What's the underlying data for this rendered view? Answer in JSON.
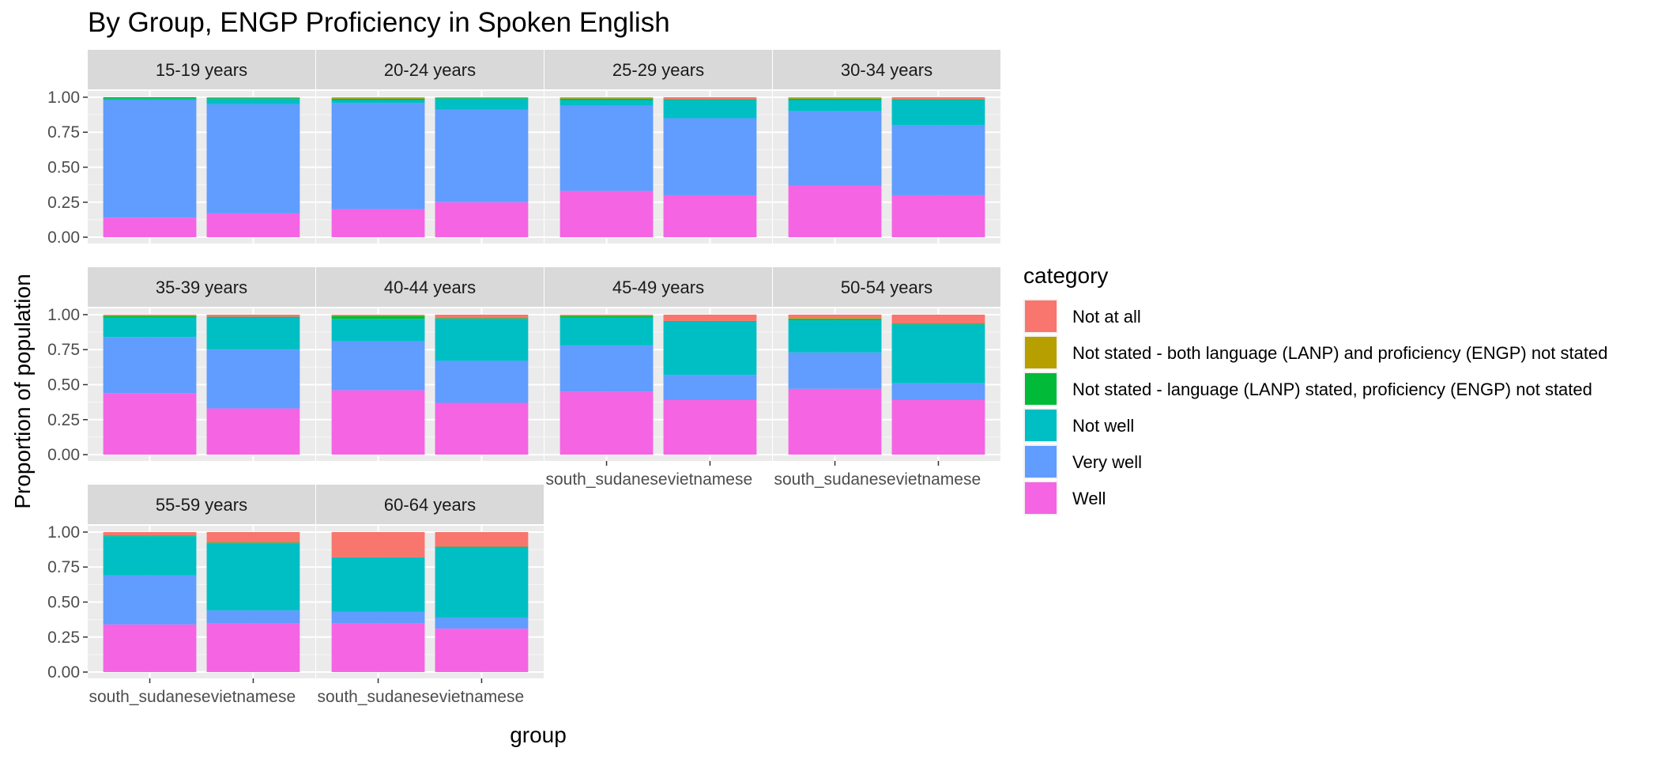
{
  "chart_data": {
    "type": "bar",
    "stacked": true,
    "faceted": true,
    "title": "By Group,  ENGP Proficiency in Spoken English",
    "xlabel": "group",
    "ylabel": "Proportion of population",
    "ylim": [
      0,
      1
    ],
    "y_ticks": [
      "0.00",
      "0.25",
      "0.50",
      "0.75",
      "1.00"
    ],
    "groups": [
      "south_sudanese",
      "vietnamese"
    ],
    "legend": {
      "title": "category",
      "position": "right",
      "entries": [
        {
          "name": "Not at all",
          "color": "#F8766D"
        },
        {
          "name": "Not stated - both language (LANP) and proficiency (ENGP) not stated",
          "color": "#B79F00"
        },
        {
          "name": "Not stated - language (LANP) stated, proficiency (ENGP) not stated",
          "color": "#00BA38"
        },
        {
          "name": "Not well",
          "color": "#00BFC4"
        },
        {
          "name": "Very well",
          "color": "#619CFF"
        },
        {
          "name": "Well",
          "color": "#F564E3"
        }
      ]
    },
    "stack_order_bottom_to_top": [
      "Well",
      "Very well",
      "Not well",
      "Not stated - language (LANP) stated, proficiency (ENGP) not stated",
      "Not stated - both language (LANP) and proficiency (ENGP) not stated",
      "Not at all"
    ],
    "facets": [
      {
        "label": "15-19 years",
        "bars": [
          {
            "group": "south_sudanese",
            "values": {
              "Well": 0.14,
              "Very well": 0.84,
              "Not well": 0.01,
              "Not stated - language (LANP) stated, proficiency (ENGP) not stated": 0.01,
              "Not stated - both language (LANP) and proficiency (ENGP) not stated": 0.0,
              "Not at all": 0.0
            }
          },
          {
            "group": "vietnamese",
            "values": {
              "Well": 0.17,
              "Very well": 0.78,
              "Not well": 0.04,
              "Not stated - language (LANP) stated, proficiency (ENGP) not stated": 0.005,
              "Not stated - both language (LANP) and proficiency (ENGP) not stated": 0.0,
              "Not at all": 0.005
            }
          }
        ]
      },
      {
        "label": "20-24 years",
        "bars": [
          {
            "group": "south_sudanese",
            "values": {
              "Well": 0.2,
              "Very well": 0.76,
              "Not well": 0.02,
              "Not stated - language (LANP) stated, proficiency (ENGP) not stated": 0.01,
              "Not stated - both language (LANP) and proficiency (ENGP) not stated": 0.005,
              "Not at all": 0.005
            }
          },
          {
            "group": "vietnamese",
            "values": {
              "Well": 0.25,
              "Very well": 0.66,
              "Not well": 0.08,
              "Not stated - language (LANP) stated, proficiency (ENGP) not stated": 0.005,
              "Not stated - both language (LANP) and proficiency (ENGP) not stated": 0.0,
              "Not at all": 0.005
            }
          }
        ]
      },
      {
        "label": "25-29 years",
        "bars": [
          {
            "group": "south_sudanese",
            "values": {
              "Well": 0.33,
              "Very well": 0.61,
              "Not well": 0.04,
              "Not stated - language (LANP) stated, proficiency (ENGP) not stated": 0.01,
              "Not stated - both language (LANP) and proficiency (ENGP) not stated": 0.005,
              "Not at all": 0.005
            }
          },
          {
            "group": "vietnamese",
            "values": {
              "Well": 0.3,
              "Very well": 0.55,
              "Not well": 0.13,
              "Not stated - language (LANP) stated, proficiency (ENGP) not stated": 0.005,
              "Not stated - both language (LANP) and proficiency (ENGP) not stated": 0.0,
              "Not at all": 0.015
            }
          }
        ]
      },
      {
        "label": "30-34 years",
        "bars": [
          {
            "group": "south_sudanese",
            "values": {
              "Well": 0.37,
              "Very well": 0.53,
              "Not well": 0.08,
              "Not stated - language (LANP) stated, proficiency (ENGP) not stated": 0.01,
              "Not stated - both language (LANP) and proficiency (ENGP) not stated": 0.005,
              "Not at all": 0.005
            }
          },
          {
            "group": "vietnamese",
            "values": {
              "Well": 0.3,
              "Very well": 0.5,
              "Not well": 0.18,
              "Not stated - language (LANP) stated, proficiency (ENGP) not stated": 0.005,
              "Not stated - both language (LANP) and proficiency (ENGP) not stated": 0.0,
              "Not at all": 0.015
            }
          }
        ]
      },
      {
        "label": "35-39 years",
        "bars": [
          {
            "group": "south_sudanese",
            "values": {
              "Well": 0.44,
              "Very well": 0.4,
              "Not well": 0.14,
              "Not stated - language (LANP) stated, proficiency (ENGP) not stated": 0.01,
              "Not stated - both language (LANP) and proficiency (ENGP) not stated": 0.005,
              "Not at all": 0.005
            }
          },
          {
            "group": "vietnamese",
            "values": {
              "Well": 0.33,
              "Very well": 0.42,
              "Not well": 0.23,
              "Not stated - language (LANP) stated, proficiency (ENGP) not stated": 0.005,
              "Not stated - both language (LANP) and proficiency (ENGP) not stated": 0.0,
              "Not at all": 0.015
            }
          }
        ]
      },
      {
        "label": "40-44 years",
        "bars": [
          {
            "group": "south_sudanese",
            "values": {
              "Well": 0.46,
              "Very well": 0.35,
              "Not well": 0.16,
              "Not stated - language (LANP) stated, proficiency (ENGP) not stated": 0.02,
              "Not stated - both language (LANP) and proficiency (ENGP) not stated": 0.005,
              "Not at all": 0.005
            }
          },
          {
            "group": "vietnamese",
            "values": {
              "Well": 0.37,
              "Very well": 0.3,
              "Not well": 0.3,
              "Not stated - language (LANP) stated, proficiency (ENGP) not stated": 0.005,
              "Not stated - both language (LANP) and proficiency (ENGP) not stated": 0.0,
              "Not at all": 0.025
            }
          }
        ]
      },
      {
        "label": "45-49 years",
        "bars": [
          {
            "group": "south_sudanese",
            "values": {
              "Well": 0.45,
              "Very well": 0.33,
              "Not well": 0.2,
              "Not stated - language (LANP) stated, proficiency (ENGP) not stated": 0.01,
              "Not stated - both language (LANP) and proficiency (ENGP) not stated": 0.005,
              "Not at all": 0.005
            }
          },
          {
            "group": "vietnamese",
            "values": {
              "Well": 0.39,
              "Very well": 0.18,
              "Not well": 0.38,
              "Not stated - language (LANP) stated, proficiency (ENGP) not stated": 0.005,
              "Not stated - both language (LANP) and proficiency (ENGP) not stated": 0.0,
              "Not at all": 0.045
            }
          }
        ]
      },
      {
        "label": "50-54 years",
        "bars": [
          {
            "group": "south_sudanese",
            "values": {
              "Well": 0.47,
              "Very well": 0.26,
              "Not well": 0.23,
              "Not stated - language (LANP) stated, proficiency (ENGP) not stated": 0.01,
              "Not stated - both language (LANP) and proficiency (ENGP) not stated": 0.005,
              "Not at all": 0.025
            }
          },
          {
            "group": "vietnamese",
            "values": {
              "Well": 0.39,
              "Very well": 0.12,
              "Not well": 0.42,
              "Not stated - language (LANP) stated, proficiency (ENGP) not stated": 0.005,
              "Not stated - both language (LANP) and proficiency (ENGP) not stated": 0.0,
              "Not at all": 0.065
            }
          }
        ]
      },
      {
        "label": "55-59 years",
        "bars": [
          {
            "group": "south_sudanese",
            "values": {
              "Well": 0.34,
              "Very well": 0.35,
              "Not well": 0.28,
              "Not stated - language (LANP) stated, proficiency (ENGP) not stated": 0.005,
              "Not stated - both language (LANP) and proficiency (ENGP) not stated": 0.0,
              "Not at all": 0.025
            }
          },
          {
            "group": "vietnamese",
            "values": {
              "Well": 0.35,
              "Very well": 0.09,
              "Not well": 0.48,
              "Not stated - language (LANP) stated, proficiency (ENGP) not stated": 0.005,
              "Not stated - both language (LANP) and proficiency (ENGP) not stated": 0.0,
              "Not at all": 0.075
            }
          }
        ]
      },
      {
        "label": "60-64 years",
        "bars": [
          {
            "group": "south_sudanese",
            "values": {
              "Well": 0.35,
              "Very well": 0.08,
              "Not well": 0.39,
              "Not stated - language (LANP) stated, proficiency (ENGP) not stated": 0.0,
              "Not stated - both language (LANP) and proficiency (ENGP) not stated": 0.0,
              "Not at all": 0.18
            }
          },
          {
            "group": "vietnamese",
            "values": {
              "Well": 0.31,
              "Very well": 0.08,
              "Not well": 0.5,
              "Not stated - language (LANP) stated, proficiency (ENGP) not stated": 0.005,
              "Not stated - both language (LANP) and proficiency (ENGP) not stated": 0.0,
              "Not at all": 0.105
            }
          }
        ]
      }
    ]
  }
}
